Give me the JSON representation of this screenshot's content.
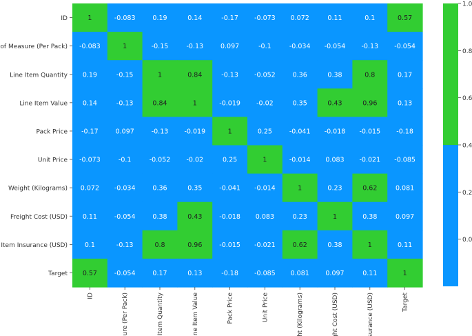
{
  "chart_data": {
    "type": "heatmap",
    "rows": [
      "ID",
      "nit of Measure (Per Pack)",
      "Line Item Quantity",
      "Line Item Value",
      "Pack Price",
      "Unit Price",
      "Weight (Kilograms)",
      "Freight Cost (USD)",
      "Line Item Insurance (USD)",
      "Target"
    ],
    "columns": [
      "ID",
      "asure (Per Pack)",
      "ne Item Quantity",
      "Line Item Value",
      "Pack Price",
      "Unit Price",
      "eight (Kilograms)",
      "eight Cost (USD)",
      "nsurance (USD)",
      "Target"
    ],
    "values": [
      [
        1,
        -0.083,
        0.19,
        0.14,
        -0.17,
        -0.073,
        0.072,
        0.11,
        0.1,
        0.57
      ],
      [
        -0.083,
        1,
        -0.15,
        -0.13,
        0.097,
        -0.1,
        -0.034,
        -0.054,
        -0.13,
        -0.054
      ],
      [
        0.19,
        -0.15,
        1,
        0.84,
        -0.13,
        -0.052,
        0.36,
        0.38,
        0.8,
        0.17
      ],
      [
        0.14,
        -0.13,
        0.84,
        1,
        -0.019,
        -0.02,
        0.35,
        0.43,
        0.96,
        0.13
      ],
      [
        -0.17,
        0.097,
        -0.13,
        -0.019,
        1,
        0.25,
        -0.041,
        -0.018,
        -0.015,
        -0.18
      ],
      [
        -0.073,
        -0.1,
        -0.052,
        -0.02,
        0.25,
        1,
        -0.014,
        0.083,
        -0.021,
        -0.085
      ],
      [
        0.072,
        -0.034,
        0.36,
        0.35,
        -0.041,
        -0.014,
        1,
        0.23,
        0.62,
        0.081
      ],
      [
        0.11,
        -0.054,
        0.38,
        0.43,
        -0.018,
        0.083,
        0.23,
        1,
        0.38,
        0.097
      ],
      [
        0.1,
        -0.13,
        0.8,
        0.96,
        -0.015,
        -0.021,
        0.62,
        0.38,
        1,
        0.11
      ],
      [
        0.57,
        -0.054,
        0.17,
        0.13,
        -0.18,
        -0.085,
        0.081,
        0.097,
        0.11,
        1
      ]
    ],
    "labels": [
      [
        "1",
        "-0.083",
        "0.19",
        "0.14",
        "-0.17",
        "-0.073",
        "0.072",
        "0.11",
        "0.1",
        "0.57"
      ],
      [
        "-0.083",
        "1",
        "-0.15",
        "-0.13",
        "0.097",
        "-0.1",
        "-0.034",
        "-0.054",
        "-0.13",
        "-0.054"
      ],
      [
        "0.19",
        "-0.15",
        "1",
        "0.84",
        "-0.13",
        "-0.052",
        "0.36",
        "0.38",
        "0.8",
        "0.17"
      ],
      [
        "0.14",
        "-0.13",
        "0.84",
        "1",
        "-0.019",
        "-0.02",
        "0.35",
        "0.43",
        "0.96",
        "0.13"
      ],
      [
        "-0.17",
        "0.097",
        "-0.13",
        "-0.019",
        "1",
        "0.25",
        "-0.041",
        "-0.018",
        "-0.015",
        "-0.18"
      ],
      [
        "-0.073",
        "-0.1",
        "-0.052",
        "-0.02",
        "0.25",
        "1",
        "-0.014",
        "0.083",
        "-0.021",
        "-0.085"
      ],
      [
        "0.072",
        "-0.034",
        "0.36",
        "0.35",
        "-0.041",
        "-0.014",
        "1",
        "0.23",
        "0.62",
        "0.081"
      ],
      [
        "0.11",
        "-0.054",
        "0.38",
        "0.43",
        "-0.018",
        "0.083",
        "0.23",
        "1",
        "0.38",
        "0.097"
      ],
      [
        "0.1",
        "-0.13",
        "0.8",
        "0.96",
        "-0.015",
        "-0.021",
        "0.62",
        "0.38",
        "1",
        "0.11"
      ],
      [
        "0.57",
        "-0.054",
        "0.17",
        "0.13",
        "-0.18",
        "-0.085",
        "0.081",
        "0.097",
        "0.11",
        "1"
      ]
    ],
    "threshold": 0.4,
    "colors": {
      "low": "#0a96ff",
      "high": "#32cd32",
      "text_low": "#ffffff",
      "text_high": "#222222"
    },
    "colorbar": {
      "range": [
        -0.2,
        1.0
      ],
      "ticks": [
        "1.0",
        "0.8",
        "0.6",
        "0.4",
        "0.2",
        "0.0"
      ]
    },
    "title": "",
    "xlabel": "",
    "ylabel": "",
    "grid": false,
    "legend": "colorbar-right"
  }
}
